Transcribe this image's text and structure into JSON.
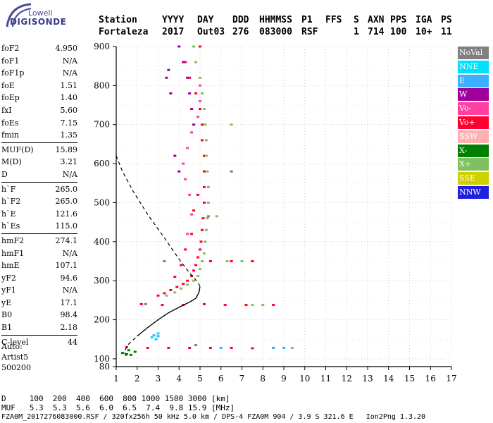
{
  "logo": {
    "line1": "Lowell",
    "line2": "DIGISONDE"
  },
  "header": {
    "labels": [
      "Station",
      "YYYY",
      "DAY",
      "DDD",
      "HHMMSS",
      "P1",
      "FFS",
      "S",
      "AXN",
      "PPS",
      "IGA",
      "PS"
    ],
    "values": [
      "Fortaleza",
      "2017",
      "Out03",
      "276",
      "083000",
      "RSF",
      "",
      "1",
      "714",
      "100",
      "10+",
      "11"
    ]
  },
  "params_groups": [
    [
      [
        "foF2",
        "4.950"
      ],
      [
        "foF1",
        "N/A"
      ],
      [
        "foF1p",
        "N/A"
      ],
      [
        "foE",
        "1.51"
      ],
      [
        "foEp",
        "1.40"
      ],
      [
        "fxI",
        "5.60"
      ],
      [
        "foEs",
        "7.15"
      ],
      [
        "fmin",
        "1.35"
      ]
    ],
    [
      [
        "MUF(D)",
        "15.89"
      ],
      [
        "M(D)",
        "3.21"
      ],
      [
        "D",
        "N/A"
      ]
    ],
    [
      [
        "h`F",
        "265.0"
      ],
      [
        "h`F2",
        "265.0"
      ],
      [
        "h`E",
        "121.6"
      ],
      [
        "h`Es",
        "115.0"
      ]
    ],
    [
      [
        "hmF2",
        "274.1"
      ],
      [
        "hmF1",
        "N/A"
      ],
      [
        "hmE",
        "107.1"
      ],
      [
        "yF2",
        "94.6"
      ],
      [
        "yF1",
        "N/A"
      ],
      [
        "yE",
        "17.1"
      ],
      [
        "B0",
        "98.4"
      ],
      [
        "B1",
        "2.18"
      ]
    ],
    [
      [
        "C-level",
        "44"
      ]
    ]
  ],
  "auto": {
    "line1": "Auto:",
    "line2": "Artist5",
    "line3": "500200"
  },
  "legend": [
    {
      "label": "NoVal",
      "color": "#808080"
    },
    {
      "label": "NNE",
      "color": "#00e0ff"
    },
    {
      "label": "E",
      "color": "#3ab0ff"
    },
    {
      "label": "W",
      "color": "#a0009a"
    },
    {
      "label": "Vo-",
      "color": "#ff40a0"
    },
    {
      "label": "Vo+",
      "color": "#ff0030"
    },
    {
      "label": "SSW",
      "color": "#ffb0b0"
    },
    {
      "label": "X-",
      "color": "#008000"
    },
    {
      "label": "X+",
      "color": "#80c060"
    },
    {
      "label": "SSE",
      "color": "#d0d000"
    },
    {
      "label": "NNW",
      "color": "#2020e0"
    }
  ],
  "footer": {
    "d_line": "D     100  200  400  600  800 1000 1500 3000 [km]",
    "muf_line": "MUF   5.3  5.3  5.6  6.0  6.5  7.4  9.8 15.9 [MHz]",
    "file_line": "FZA0M_2017276083000.RSF / 320fx256h 50 kHz 5.0 km / DPS-4 FZA0M 904 / 3.9 S 321.6 E   Ion2Png 1.3.20"
  },
  "chart_data": {
    "type": "scatter",
    "xlabel": "",
    "ylabel": "",
    "xlim": [
      1,
      17
    ],
    "ylim": [
      80,
      900
    ],
    "x_ticks": [
      1,
      2,
      3,
      4,
      5,
      6,
      7,
      8,
      9,
      10,
      11,
      12,
      13,
      14,
      15,
      16,
      17
    ],
    "y_ticks": [
      100,
      200,
      300,
      400,
      500,
      600,
      700,
      800,
      900
    ],
    "y_extra_tick_label": "80",
    "grid": true,
    "series": [
      {
        "name": "Vo+",
        "color": "#ff0030",
        "points": [
          [
            1.5,
            130
          ],
          [
            2.5,
            128
          ],
          [
            3.5,
            128
          ],
          [
            4.5,
            128
          ],
          [
            5.5,
            128
          ],
          [
            6.5,
            128
          ],
          [
            7.5,
            127
          ],
          [
            8.5,
            128
          ],
          [
            2.2,
            240
          ],
          [
            3.2,
            238
          ],
          [
            4.2,
            238
          ],
          [
            5.2,
            240
          ],
          [
            6.2,
            238
          ],
          [
            7.2,
            238
          ],
          [
            8.5,
            238
          ],
          [
            3.0,
            262
          ],
          [
            3.3,
            268
          ],
          [
            3.6,
            276
          ],
          [
            3.9,
            284
          ],
          [
            4.2,
            292
          ],
          [
            4.4,
            300
          ],
          [
            4.6,
            312
          ],
          [
            4.7,
            326
          ],
          [
            4.8,
            340
          ],
          [
            4.9,
            360
          ],
          [
            5.0,
            380
          ],
          [
            5.05,
            400
          ],
          [
            5.1,
            430
          ],
          [
            5.15,
            460
          ],
          [
            5.2,
            500
          ],
          [
            5.2,
            540
          ],
          [
            5.2,
            580
          ],
          [
            5.2,
            620
          ],
          [
            5.1,
            660
          ],
          [
            5.1,
            700
          ],
          [
            5.0,
            740
          ],
          [
            4.8,
            780
          ],
          [
            4.5,
            820
          ],
          [
            4.3,
            860
          ],
          [
            5.0,
            900
          ],
          [
            5.5,
            350
          ],
          [
            6.5,
            350
          ],
          [
            7.5,
            350
          ],
          [
            4.7,
            480
          ],
          [
            4.9,
            520
          ],
          [
            4.6,
            420
          ],
          [
            4.3,
            380
          ],
          [
            4.1,
            340
          ],
          [
            3.8,
            310
          ]
        ]
      },
      {
        "name": "X+",
        "color": "#80c060",
        "points": [
          [
            3.4,
            262
          ],
          [
            3.8,
            270
          ],
          [
            4.1,
            280
          ],
          [
            4.4,
            290
          ],
          [
            4.7,
            300
          ],
          [
            4.9,
            312
          ],
          [
            5.0,
            330
          ],
          [
            5.1,
            350
          ],
          [
            5.2,
            370
          ],
          [
            5.25,
            400
          ],
          [
            5.3,
            430
          ],
          [
            5.35,
            460
          ],
          [
            5.4,
            500
          ],
          [
            5.4,
            540
          ],
          [
            5.35,
            580
          ],
          [
            5.3,
            620
          ],
          [
            5.3,
            660
          ],
          [
            5.25,
            700
          ],
          [
            5.2,
            740
          ],
          [
            5.1,
            780
          ],
          [
            5.0,
            820
          ],
          [
            4.8,
            860
          ],
          [
            4.7,
            900
          ],
          [
            6.5,
            700
          ],
          [
            6.5,
            580
          ],
          [
            5.8,
            465
          ],
          [
            6.3,
            350
          ],
          [
            7.0,
            350
          ],
          [
            7.5,
            238
          ],
          [
            8.0,
            238
          ],
          [
            9.0,
            128
          ],
          [
            9.4,
            128
          ]
        ]
      },
      {
        "name": "Vo-",
        "color": "#ff40a0",
        "points": [
          [
            4.4,
            420
          ],
          [
            4.6,
            470
          ],
          [
            4.5,
            520
          ],
          [
            4.3,
            560
          ],
          [
            4.2,
            600
          ],
          [
            4.4,
            640
          ],
          [
            4.6,
            680
          ],
          [
            4.9,
            720
          ],
          [
            5.0,
            760
          ],
          [
            5.0,
            800
          ]
        ]
      },
      {
        "name": "W",
        "color": "#a0009a",
        "points": [
          [
            4.0,
            900
          ],
          [
            4.2,
            860
          ],
          [
            4.4,
            820
          ],
          [
            4.5,
            780
          ],
          [
            4.6,
            740
          ],
          [
            4.7,
            700
          ],
          [
            3.4,
            820
          ],
          [
            3.6,
            780
          ],
          [
            3.5,
            840
          ],
          [
            3.8,
            620
          ],
          [
            4.0,
            580
          ]
        ]
      },
      {
        "name": "E",
        "color": "#3ab0ff",
        "points": [
          [
            2.8,
            160
          ],
          [
            3.0,
            158
          ],
          [
            2.9,
            150
          ],
          [
            8.5,
            128
          ],
          [
            9.0,
            128
          ],
          [
            6.0,
            128
          ]
        ]
      },
      {
        "name": "X-",
        "color": "#008000",
        "points": [
          [
            1.3,
            115
          ],
          [
            1.5,
            112
          ],
          [
            1.7,
            110
          ],
          [
            1.9,
            118
          ],
          [
            1.6,
            122
          ]
        ]
      },
      {
        "name": "NNE",
        "color": "#00e0ff",
        "points": [
          [
            3.0,
            165
          ],
          [
            2.7,
            155
          ]
        ]
      },
      {
        "name": "NoVal",
        "color": "#808080",
        "points": [
          [
            6.5,
            580
          ],
          [
            5.4,
            465
          ],
          [
            2.4,
            240
          ],
          [
            3.3,
            350
          ],
          [
            4.8,
            135
          ]
        ]
      }
    ],
    "profile_dashed": [
      [
        1.0,
        620
      ],
      [
        1.3,
        580
      ],
      [
        1.8,
        530
      ],
      [
        2.5,
        470
      ],
      [
        3.3,
        410
      ],
      [
        4.0,
        355
      ],
      [
        4.5,
        320
      ],
      [
        4.9,
        296
      ],
      [
        5.0,
        285
      ],
      [
        4.95,
        270
      ],
      [
        4.8,
        255
      ],
      [
        4.5,
        245
      ],
      [
        4.0,
        232
      ],
      [
        3.5,
        218
      ],
      [
        3.0,
        200
      ],
      [
        2.5,
        180
      ],
      [
        2.0,
        158
      ],
      [
        1.6,
        138
      ],
      [
        1.45,
        125
      ],
      [
        1.4,
        115
      ],
      [
        1.5,
        105
      ]
    ],
    "profile_solid": [
      [
        5.0,
        285
      ],
      [
        4.95,
        270
      ],
      [
        4.8,
        255
      ],
      [
        4.5,
        245
      ],
      [
        4.0,
        232
      ],
      [
        3.5,
        218
      ],
      [
        3.0,
        200
      ],
      [
        2.5,
        180
      ],
      [
        2.0,
        158
      ]
    ]
  }
}
